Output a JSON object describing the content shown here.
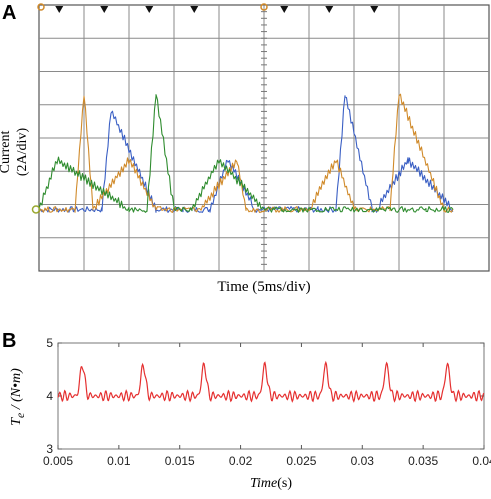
{
  "panels": {
    "a": "A",
    "b": "B"
  },
  "chart_data": [
    {
      "type": "line",
      "ylabel_line1": "Current",
      "ylabel_line2": "(2A/div)",
      "xlabel": "Time (5ms/div)",
      "x_divisions": 10,
      "y_divisions": 8,
      "x_unit": "ms",
      "y_unit": "A",
      "grid": true,
      "series": [
        {
          "color": "#3a5fc4",
          "x": [
            0,
            3,
            7,
            8,
            13,
            16,
            17,
            19,
            21,
            24,
            31,
            33,
            34,
            37,
            37.5,
            41,
            46
          ],
          "y": [
            0,
            0,
            0,
            6,
            0,
            0,
            0,
            0,
            3,
            0,
            0,
            0,
            7,
            0,
            0,
            3,
            0
          ]
        },
        {
          "color": "#d08a2a",
          "x": [
            0,
            4,
            5,
            6,
            10,
            13,
            15,
            18,
            22,
            23,
            24,
            29,
            30,
            33,
            35,
            39,
            40,
            45,
            46
          ],
          "y": [
            0,
            0,
            7,
            0,
            3,
            0,
            0,
            0,
            3,
            0,
            0,
            0,
            0,
            3,
            0,
            0,
            7,
            0,
            0
          ]
        },
        {
          "color": "#2f8c2f",
          "x": [
            0,
            2,
            10,
            12,
            13,
            15,
            17,
            20,
            25,
            27,
            30,
            38,
            43,
            46
          ],
          "y": [
            0,
            3,
            0,
            0,
            7,
            0,
            0,
            3,
            0,
            0,
            0,
            0,
            0,
            0
          ]
        }
      ]
    },
    {
      "type": "line",
      "xlabel_italic": "Time",
      "xlabel_unit": "(s)",
      "ylabel_T": "T",
      "ylabel_sub": "e",
      "ylabel_rest": " / (N•m)",
      "xlim": [
        0.005,
        0.04
      ],
      "ylim": [
        3,
        5
      ],
      "xticks": [
        "0.005",
        "0.01",
        "0.015",
        "0.02",
        "0.025",
        "0.03",
        "0.035",
        "0.04"
      ],
      "yticks": [
        "3",
        "4",
        "5"
      ],
      "grid": false,
      "series": [
        {
          "color": "#e53030",
          "baseline": 4.0,
          "ripple": 0.1,
          "spike_times": [
            0.007,
            0.012,
            0.017,
            0.022,
            0.027,
            0.032,
            0.037
          ],
          "spike_peak": 4.6
        }
      ]
    }
  ]
}
